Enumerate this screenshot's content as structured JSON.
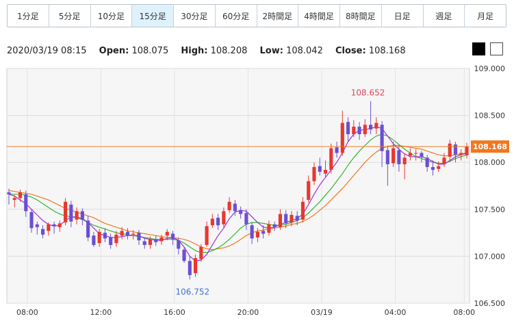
{
  "timeframes": [
    {
      "label": "1分足",
      "active": false
    },
    {
      "label": "5分足",
      "active": false
    },
    {
      "label": "10分足",
      "active": false
    },
    {
      "label": "15分足",
      "active": true
    },
    {
      "label": "30分足",
      "active": false
    },
    {
      "label": "60分足",
      "active": false
    },
    {
      "label": "2時間足",
      "active": false
    },
    {
      "label": "4時間足",
      "active": false
    },
    {
      "label": "8時間足",
      "active": false
    },
    {
      "label": "日足",
      "active": false
    },
    {
      "label": "週足",
      "active": false
    },
    {
      "label": "月足",
      "active": false
    }
  ],
  "ohlc": {
    "datetime": "2020/03/19 08:15",
    "open_label": "Open:",
    "open": "108.075",
    "high_label": "High:",
    "high": "108.208",
    "low_label": "Low:",
    "low": "108.042",
    "close_label": "Close:",
    "close": "108.168"
  },
  "theme_buttons": {
    "dark": "dark-theme",
    "light": "light-theme"
  },
  "colors": {
    "up": "#e8372f",
    "down": "#6a4fd4",
    "ma_short": "#9b2fd6",
    "ma_mid": "#2fb52f",
    "ma_long": "#f07820",
    "current_price_bg": "#f07820"
  },
  "chart_data": {
    "type": "candlestick",
    "ylim": [
      106.5,
      109.0
    ],
    "yticks": [
      "109.000",
      "108.500",
      "108.000",
      "107.500",
      "107.000",
      "106.500"
    ],
    "xticks": [
      "08:00",
      "12:00",
      "16:00",
      "20:00",
      "03/19",
      "04:00",
      "08:00"
    ],
    "current_price": "108.168",
    "annotations": [
      {
        "text": "108.652",
        "type": "high"
      },
      {
        "text": "106.752",
        "type": "low"
      }
    ],
    "candles": [
      [
        107.68,
        107.66,
        107.72,
        107.55
      ],
      [
        107.6,
        107.62,
        107.65,
        107.52
      ],
      [
        107.62,
        107.68,
        107.71,
        107.58
      ],
      [
        107.66,
        107.48,
        107.7,
        107.42
      ],
      [
        107.47,
        107.3,
        107.5,
        107.25
      ],
      [
        107.34,
        107.31,
        107.37,
        107.23
      ],
      [
        107.29,
        107.23,
        107.33,
        107.19
      ],
      [
        107.27,
        107.34,
        107.36,
        107.22
      ],
      [
        107.34,
        107.32,
        107.37,
        107.24
      ],
      [
        107.31,
        107.35,
        107.38,
        107.26
      ],
      [
        107.36,
        107.58,
        107.62,
        107.33
      ],
      [
        107.55,
        107.37,
        107.59,
        107.31
      ],
      [
        107.39,
        107.48,
        107.52,
        107.34
      ],
      [
        107.48,
        107.39,
        107.51,
        107.33
      ],
      [
        107.38,
        107.2,
        107.43,
        107.16
      ],
      [
        107.22,
        107.12,
        107.26,
        107.1
      ],
      [
        107.14,
        107.26,
        107.29,
        107.1
      ],
      [
        107.25,
        107.19,
        107.3,
        107.15
      ],
      [
        107.2,
        107.12,
        107.24,
        107.08
      ],
      [
        107.14,
        107.23,
        107.27,
        107.1
      ],
      [
        107.22,
        107.27,
        107.31,
        107.18
      ],
      [
        107.26,
        107.22,
        107.3,
        107.18
      ],
      [
        107.23,
        107.24,
        107.28,
        107.18
      ],
      [
        107.25,
        107.17,
        107.28,
        107.12
      ],
      [
        107.16,
        107.12,
        107.19,
        107.08
      ],
      [
        107.12,
        107.18,
        107.21,
        107.08
      ],
      [
        107.18,
        107.15,
        107.22,
        107.11
      ],
      [
        107.16,
        107.2,
        107.23,
        107.12
      ],
      [
        107.22,
        107.26,
        107.29,
        107.17
      ],
      [
        107.24,
        107.18,
        107.27,
        107.12
      ],
      [
        107.17,
        107.08,
        107.2,
        107.02
      ],
      [
        107.07,
        106.95,
        107.1,
        106.93
      ],
      [
        106.95,
        106.8,
        107.0,
        106.752
      ],
      [
        106.82,
        106.98,
        107.02,
        106.78
      ],
      [
        106.97,
        107.1,
        107.13,
        106.94
      ],
      [
        107.12,
        107.32,
        107.37,
        107.1
      ],
      [
        107.33,
        107.4,
        107.45,
        107.3
      ],
      [
        107.41,
        107.33,
        107.45,
        107.28
      ],
      [
        107.34,
        107.48,
        107.52,
        107.31
      ],
      [
        107.49,
        107.58,
        107.63,
        107.46
      ],
      [
        107.56,
        107.48,
        107.6,
        107.43
      ],
      [
        107.49,
        107.45,
        107.53,
        107.4
      ],
      [
        107.46,
        107.34,
        107.5,
        107.28
      ],
      [
        107.33,
        107.19,
        107.36,
        107.13
      ],
      [
        107.2,
        107.26,
        107.3,
        107.15
      ],
      [
        107.27,
        107.24,
        107.33,
        107.19
      ],
      [
        107.25,
        107.34,
        107.38,
        107.22
      ],
      [
        107.34,
        107.31,
        107.37,
        107.27
      ],
      [
        107.31,
        107.45,
        107.5,
        107.28
      ],
      [
        107.45,
        107.35,
        107.49,
        107.3
      ],
      [
        107.36,
        107.44,
        107.48,
        107.32
      ],
      [
        107.43,
        107.38,
        107.48,
        107.33
      ],
      [
        107.39,
        107.58,
        107.63,
        107.36
      ],
      [
        107.6,
        107.8,
        107.86,
        107.57
      ],
      [
        107.8,
        107.95,
        108.0,
        107.76
      ],
      [
        107.96,
        107.9,
        108.05,
        107.86
      ],
      [
        107.88,
        107.92,
        108.02,
        107.84
      ],
      [
        107.92,
        108.15,
        108.2,
        107.88
      ],
      [
        108.16,
        108.1,
        108.22,
        108.05
      ],
      [
        108.1,
        108.42,
        108.55,
        108.07
      ],
      [
        108.43,
        108.3,
        108.48,
        108.22
      ],
      [
        108.3,
        108.38,
        108.45,
        108.27
      ],
      [
        108.38,
        108.3,
        108.43,
        108.24
      ],
      [
        108.3,
        108.4,
        108.46,
        108.27
      ],
      [
        108.4,
        108.35,
        108.652,
        108.3
      ],
      [
        108.36,
        108.42,
        108.48,
        108.3
      ],
      [
        108.4,
        108.12,
        108.44,
        107.95
      ],
      [
        108.13,
        107.98,
        108.18,
        107.75
      ],
      [
        107.99,
        108.15,
        108.22,
        107.95
      ],
      [
        108.13,
        107.98,
        108.18,
        107.9
      ],
      [
        107.98,
        108.05,
        108.1,
        107.82
      ],
      [
        108.07,
        108.1,
        108.15,
        108.02
      ],
      [
        108.1,
        108.1,
        108.14,
        108.02
      ],
      [
        108.1,
        108.06,
        108.12,
        108.0
      ],
      [
        108.05,
        107.95,
        108.08,
        107.9
      ],
      [
        107.95,
        107.92,
        108.02,
        107.86
      ],
      [
        107.93,
        107.96,
        108.01,
        107.9
      ],
      [
        107.98,
        108.05,
        108.1,
        107.95
      ],
      [
        108.06,
        108.2,
        108.24,
        108.02
      ],
      [
        108.19,
        108.08,
        108.22,
        108.0
      ],
      [
        108.08,
        108.1,
        108.14,
        108.02
      ],
      [
        108.075,
        108.168,
        108.208,
        108.042
      ]
    ],
    "ma_short": [
      107.66,
      107.64,
      107.6,
      107.56,
      107.5,
      107.44,
      107.38,
      107.34,
      107.32,
      107.33,
      107.38,
      107.42,
      107.42,
      107.4,
      107.36,
      107.3,
      107.24,
      107.22,
      107.2,
      107.2,
      107.21,
      107.22,
      107.22,
      107.22,
      107.19,
      107.18,
      107.17,
      107.17,
      107.19,
      107.2,
      107.17,
      107.1,
      107.0,
      106.95,
      106.96,
      107.02,
      107.12,
      107.22,
      107.3,
      107.4,
      107.47,
      107.49,
      107.48,
      107.42,
      107.36,
      107.31,
      107.3,
      107.31,
      107.34,
      107.36,
      107.38,
      107.4,
      107.45,
      107.55,
      107.66,
      107.76,
      107.84,
      107.92,
      108.0,
      108.1,
      108.22,
      108.3,
      108.34,
      108.35,
      108.36,
      108.38,
      108.36,
      108.28,
      108.2,
      108.14,
      108.09,
      108.06,
      108.06,
      108.06,
      108.04,
      108.01,
      107.98,
      107.98,
      108.02,
      108.06,
      108.08,
      108.1
    ],
    "ma_mid": [
      107.66,
      107.66,
      107.66,
      107.65,
      107.63,
      107.6,
      107.56,
      107.52,
      107.48,
      107.45,
      107.43,
      107.42,
      107.41,
      107.39,
      107.36,
      107.33,
      107.31,
      107.29,
      107.27,
      107.25,
      107.24,
      107.23,
      107.22,
      107.21,
      107.2,
      107.19,
      107.18,
      107.18,
      107.18,
      107.18,
      107.17,
      107.14,
      107.1,
      107.06,
      107.04,
      107.04,
      107.06,
      107.09,
      107.13,
      107.18,
      107.24,
      107.3,
      107.34,
      107.36,
      107.36,
      107.35,
      107.34,
      107.33,
      107.33,
      107.34,
      107.36,
      107.38,
      107.41,
      107.46,
      107.52,
      107.58,
      107.65,
      107.72,
      107.8,
      107.88,
      107.97,
      108.05,
      108.12,
      108.18,
      108.24,
      108.28,
      108.3,
      108.28,
      108.24,
      108.19,
      108.14,
      108.1,
      108.06,
      108.04,
      108.02,
      108.0,
      107.99,
      107.99,
      108.01,
      108.04,
      108.06,
      108.08
    ],
    "ma_long": [
      107.7,
      107.69,
      107.68,
      107.67,
      107.66,
      107.64,
      107.62,
      107.6,
      107.57,
      107.54,
      107.51,
      107.49,
      107.47,
      107.45,
      107.43,
      107.41,
      107.38,
      107.35,
      107.33,
      107.31,
      107.29,
      107.27,
      107.26,
      107.25,
      107.24,
      107.23,
      107.22,
      107.21,
      107.2,
      107.2,
      107.19,
      107.18,
      107.16,
      107.13,
      107.1,
      107.08,
      107.07,
      107.08,
      107.09,
      107.11,
      107.14,
      107.18,
      107.22,
      107.25,
      107.27,
      107.28,
      107.29,
      107.3,
      107.31,
      107.32,
      107.34,
      107.35,
      107.37,
      107.4,
      107.44,
      107.49,
      107.54,
      107.6,
      107.66,
      107.72,
      107.79,
      107.86,
      107.93,
      108.0,
      108.06,
      108.11,
      108.15,
      108.17,
      108.18,
      108.18,
      108.17,
      108.16,
      108.15,
      108.14,
      108.12,
      108.1,
      108.08,
      108.07,
      108.07,
      108.08,
      108.09,
      108.1
    ]
  }
}
